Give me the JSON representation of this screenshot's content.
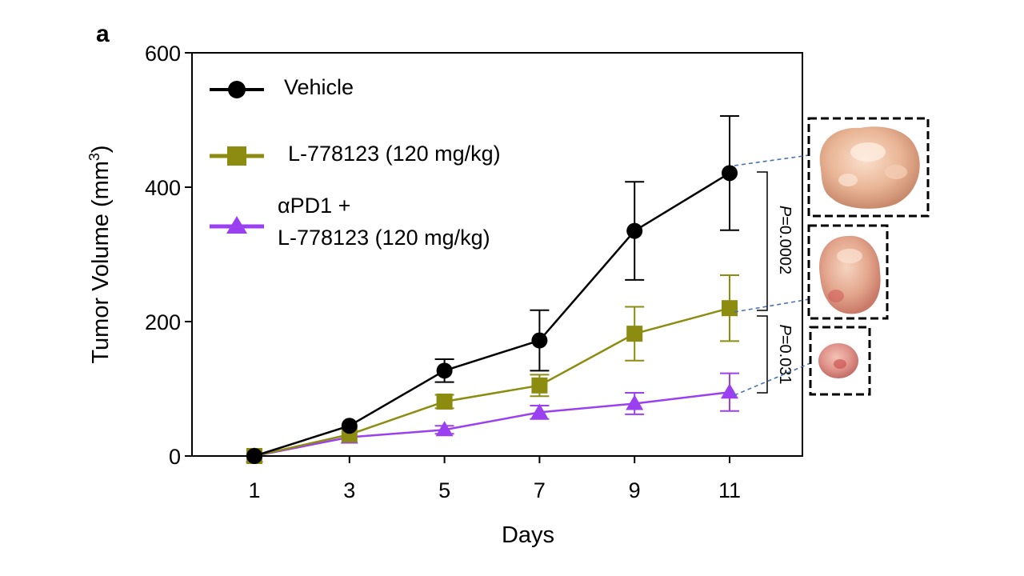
{
  "panel_label": "a",
  "chart_data": {
    "type": "line",
    "xlabel": "Days",
    "ylabel": "Tumor Volume (mm",
    "ylabel_superscript": "3",
    "ylabel_close": ")",
    "x": [
      1,
      3,
      5,
      7,
      9,
      11
    ],
    "xticks": [
      "1",
      "3",
      "5",
      "7",
      "9",
      "11"
    ],
    "yticks": [
      "0",
      "200",
      "400",
      "600"
    ],
    "ylim": [
      0,
      600
    ],
    "grid": false,
    "legend_position": "top-left",
    "series": [
      {
        "name": "Vehicle",
        "color": "#000000",
        "marker": "circle",
        "values": [
          0,
          45,
          127,
          172,
          335,
          421
        ],
        "error": [
          0,
          0,
          17,
          45,
          73,
          85
        ]
      },
      {
        "name": "L-778123 (120 mg/kg)",
        "color": "#8c8c10",
        "marker": "square",
        "values": [
          0,
          32,
          81,
          105,
          182,
          220
        ],
        "error": [
          0,
          0,
          10,
          16,
          40,
          49
        ]
      },
      {
        "name_line1": "αPD1 +",
        "name_line2": "L-778123 (120 mg/kg)",
        "color": "#9a40f0",
        "marker": "triangle",
        "values": [
          0,
          28,
          39,
          65,
          78,
          95
        ],
        "error": [
          0,
          0,
          6,
          10,
          16,
          28
        ]
      }
    ],
    "annotations": [
      {
        "label_italic": "P",
        "label_rest": "=0.0002"
      },
      {
        "label_italic": "P",
        "label_rest": "=0.031"
      }
    ]
  },
  "thumbnails": [
    {
      "subject": "tumor-vehicle",
      "color": "#e8b394"
    },
    {
      "subject": "tumor-l778123",
      "color": "#e2a58e"
    },
    {
      "subject": "tumor-apd1-l778123",
      "color": "#e0958a"
    }
  ]
}
